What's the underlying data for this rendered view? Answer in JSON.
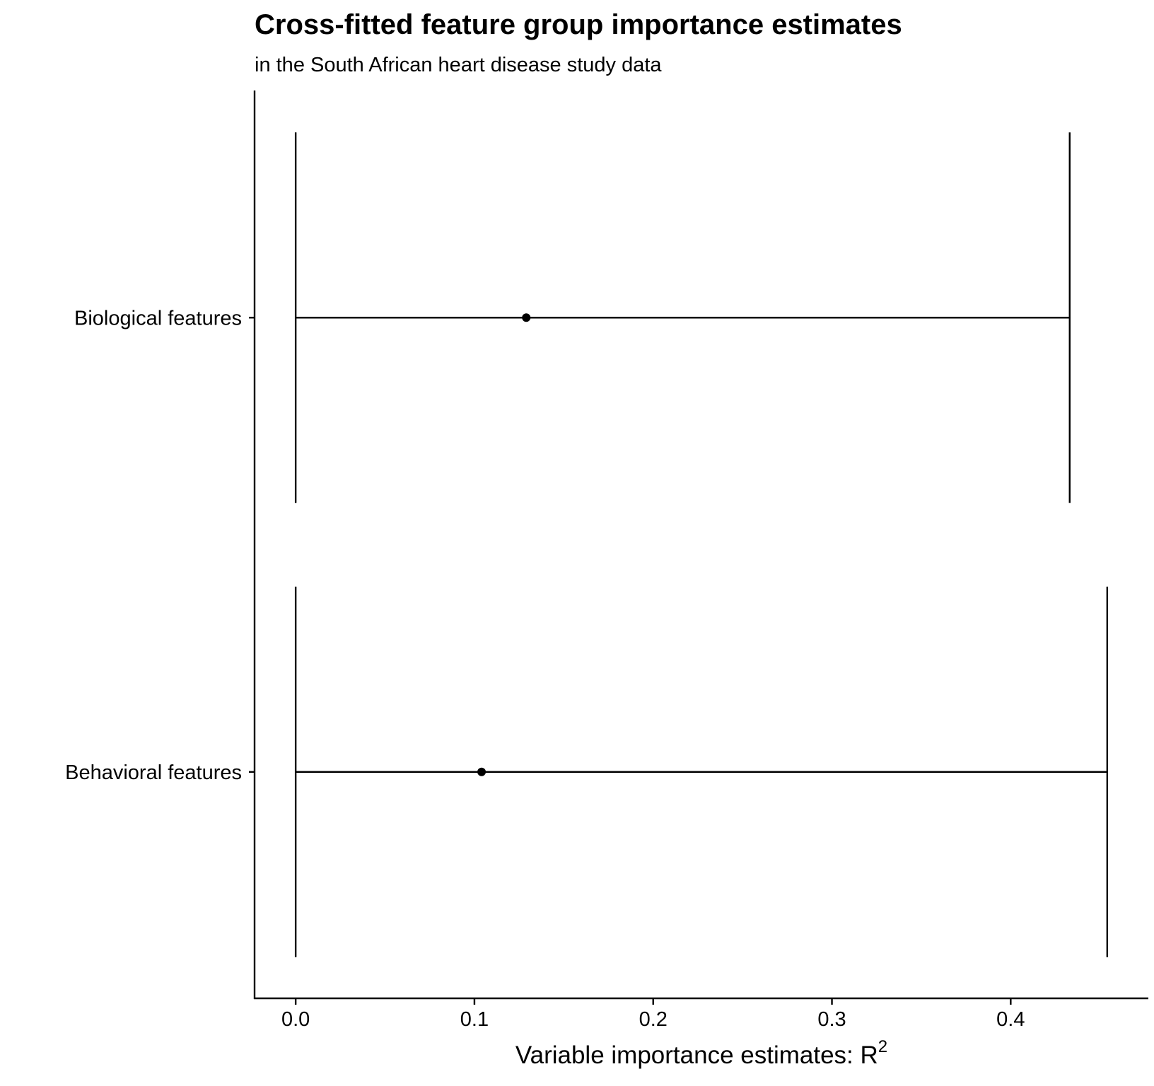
{
  "chart_data": {
    "type": "errorbar",
    "title": "Cross-fitted feature group importance estimates",
    "subtitle": "in the South African heart disease study data",
    "xlabel": "Variable importance estimates: R",
    "xlabel_superscript": "2",
    "ylabel": "",
    "xlim": [
      -0.023,
      0.477
    ],
    "xticks": [
      0.0,
      0.1,
      0.2,
      0.3,
      0.4
    ],
    "xtick_labels": [
      "0.0",
      "0.1",
      "0.2",
      "0.3",
      "0.4"
    ],
    "categories": [
      "Biological features",
      "Behavioral features"
    ],
    "series": [
      {
        "points": [
          {
            "category": "Biological features",
            "estimate": 0.129,
            "lower": 0.0,
            "upper": 0.433
          },
          {
            "category": "Behavioral features",
            "estimate": 0.104,
            "lower": 0.0,
            "upper": 0.454
          }
        ]
      }
    ],
    "grid": false,
    "legend": "none",
    "colors": {
      "line": "#000000",
      "point": "#000000",
      "background": "#ffffff"
    }
  }
}
